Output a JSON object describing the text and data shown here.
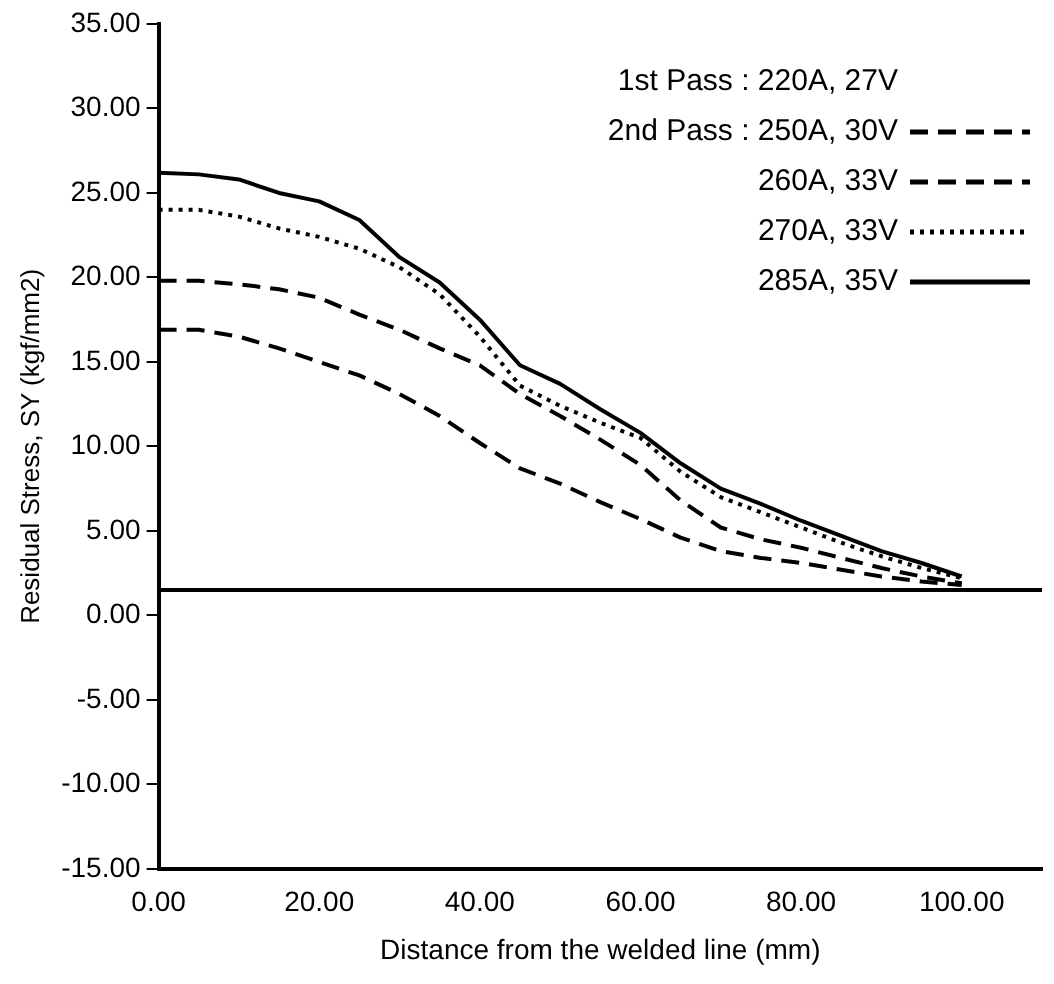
{
  "chart_data": {
    "type": "line",
    "xlabel": "Distance from the welded line (mm)",
    "ylabel": "Residual Stress, SY (kgf/mm2)",
    "legend_title": "1st Pass : 220A,  27V",
    "legend": "top right",
    "grid": false,
    "marker": "none",
    "x": [
      0,
      5,
      10,
      15,
      20,
      25,
      30,
      35,
      40,
      45,
      50,
      55,
      60,
      65,
      70,
      75,
      80,
      85,
      90,
      95,
      100
    ],
    "xlim": [
      0,
      110
    ],
    "xticks": [
      {
        "value": 0,
        "label": "0.00"
      },
      {
        "value": 20,
        "label": "20.00"
      },
      {
        "value": 40,
        "label": "40.00"
      },
      {
        "value": 60,
        "label": "60.00"
      },
      {
        "value": 80,
        "label": "80.00"
      },
      {
        "value": 100,
        "label": "100.00"
      }
    ],
    "ylim": [
      -15,
      35
    ],
    "yticks": [
      {
        "value": -15,
        "label": "-15.00"
      },
      {
        "value": -10,
        "label": "-10.00"
      },
      {
        "value": -5,
        "label": "-5.00"
      },
      {
        "value": 0,
        "label": "0.00"
      },
      {
        "value": 5,
        "label": "5.00"
      },
      {
        "value": 10,
        "label": "10.00"
      },
      {
        "value": 15,
        "label": "15.00"
      },
      {
        "value": 20,
        "label": "20.00"
      },
      {
        "value": 25,
        "label": "25.00"
      },
      {
        "value": 30,
        "label": "30.00"
      },
      {
        "value": 35,
        "label": "35.00"
      }
    ],
    "ref_lines": [
      {
        "axis": "y",
        "value": 1.5,
        "color": "#000000"
      }
    ],
    "series": [
      {
        "name": "2nd Pass : 250A,  30V",
        "color": "#000000",
        "line_style": "dashed",
        "values": [
          16.9,
          16.9,
          16.5,
          15.8,
          15.0,
          14.2,
          13.1,
          11.8,
          10.2,
          8.7,
          7.8,
          6.7,
          5.7,
          4.6,
          3.8,
          3.4,
          3.1,
          2.7,
          2.3,
          2.0,
          1.8
        ]
      },
      {
        "name": "260A,  33V",
        "color": "#000000",
        "line_style": "dashed",
        "values": [
          19.8,
          19.8,
          19.6,
          19.3,
          18.8,
          17.8,
          16.9,
          15.8,
          14.8,
          13.1,
          11.8,
          10.4,
          8.9,
          6.8,
          5.2,
          4.5,
          4.0,
          3.4,
          2.8,
          2.3,
          1.9
        ]
      },
      {
        "name": "270A,  33V",
        "color": "#000000",
        "line_style": "dotted",
        "values": [
          24.0,
          24.0,
          23.6,
          22.9,
          22.4,
          21.7,
          20.6,
          19.0,
          16.5,
          13.6,
          12.4,
          11.4,
          10.5,
          8.5,
          7.0,
          6.1,
          5.2,
          4.3,
          3.5,
          2.8,
          2.2
        ]
      },
      {
        "name": "285A,  35V",
        "color": "#000000",
        "line_style": "solid",
        "values": [
          26.2,
          26.1,
          25.8,
          25.0,
          24.5,
          23.4,
          21.2,
          19.7,
          17.5,
          14.8,
          13.7,
          12.2,
          10.8,
          9.0,
          7.5,
          6.6,
          5.6,
          4.7,
          3.8,
          3.1,
          2.3
        ]
      }
    ]
  }
}
